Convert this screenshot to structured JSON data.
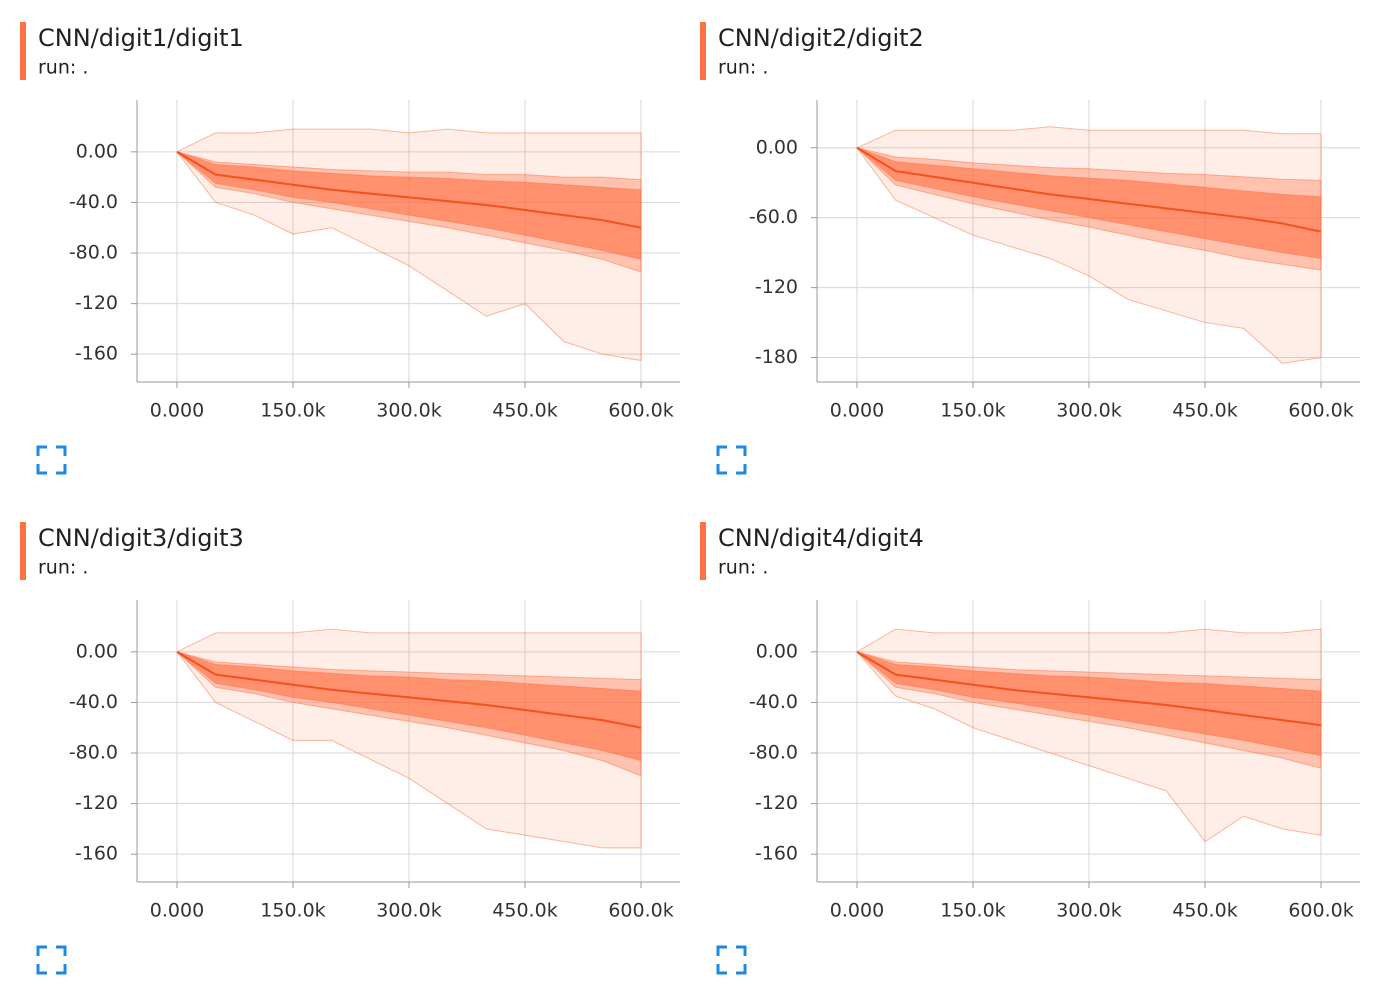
{
  "chart_data": [
    {
      "type": "distribution",
      "title": "CNN/digit1/digit1",
      "subtitle": "run: .",
      "color": "#ff7043",
      "x": [
        0,
        50000,
        100000,
        150000,
        200000,
        250000,
        300000,
        350000,
        400000,
        450000,
        500000,
        550000,
        600000
      ],
      "series": [
        {
          "color": "#ff7043",
          "values": [
            0,
            15,
            15,
            18,
            18,
            18,
            15,
            18,
            15,
            15,
            15,
            15,
            15
          ]
        },
        {
          "color": "#ff7043",
          "values": [
            0,
            -8,
            -10,
            -12,
            -14,
            -15,
            -16,
            -16,
            -18,
            -18,
            -20,
            -20,
            -22
          ]
        },
        {
          "color": "#ff7043",
          "values": [
            0,
            -10,
            -12,
            -15,
            -17,
            -19,
            -20,
            -21,
            -23,
            -24,
            -26,
            -28,
            -30
          ]
        },
        {
          "color": "#f4511e",
          "values": [
            0,
            -18,
            -22,
            -26,
            -30,
            -33,
            -36,
            -39,
            -42,
            -46,
            -50,
            -54,
            -60
          ]
        },
        {
          "color": "#ff7043",
          "values": [
            0,
            -25,
            -30,
            -36,
            -40,
            -45,
            -50,
            -55,
            -60,
            -66,
            -72,
            -78,
            -85
          ]
        },
        {
          "color": "#ff7043",
          "values": [
            0,
            -28,
            -33,
            -40,
            -45,
            -50,
            -55,
            -60,
            -66,
            -72,
            -78,
            -85,
            -95
          ]
        },
        {
          "color": "#ff7043",
          "values": [
            0,
            -40,
            -50,
            -65,
            -60,
            -75,
            -90,
            -110,
            -130,
            -120,
            -150,
            -160,
            -165
          ]
        }
      ],
      "xlim": [
        -51700,
        650400
      ],
      "ylim": [
        -182,
        41
      ],
      "xticks": [
        {
          "value": 0,
          "label": "0.000"
        },
        {
          "value": 150000,
          "label": "150.0k"
        },
        {
          "value": 300000,
          "label": "300.0k"
        },
        {
          "value": 450000,
          "label": "450.0k"
        },
        {
          "value": 600000,
          "label": "600.0k"
        }
      ],
      "yticks": [
        {
          "value": 0,
          "label": "0.00"
        },
        {
          "value": -40,
          "label": "-40.0"
        },
        {
          "value": -80,
          "label": "-80.0"
        },
        -120,
        -160
      ],
      "grid": true
    },
    {
      "type": "distribution",
      "title": "CNN/digit2/digit2",
      "subtitle": "run: .",
      "color": "#ff7043",
      "x": [
        0,
        50000,
        100000,
        150000,
        200000,
        250000,
        300000,
        350000,
        400000,
        450000,
        500000,
        550000,
        600000
      ],
      "series": [
        {
          "color": "#ff7043",
          "values": [
            0,
            15,
            15,
            15,
            15,
            18,
            15,
            15,
            15,
            15,
            15,
            12,
            12
          ]
        },
        {
          "color": "#ff7043",
          "values": [
            0,
            -8,
            -10,
            -13,
            -15,
            -17,
            -18,
            -20,
            -22,
            -23,
            -25,
            -27,
            -28
          ]
        },
        {
          "color": "#ff7043",
          "values": [
            0,
            -12,
            -15,
            -18,
            -21,
            -24,
            -26,
            -28,
            -31,
            -34,
            -37,
            -40,
            -42
          ]
        },
        {
          "color": "#f4511e",
          "values": [
            0,
            -20,
            -25,
            -30,
            -35,
            -40,
            -44,
            -48,
            -52,
            -56,
            -60,
            -65,
            -72
          ]
        },
        {
          "color": "#ff7043",
          "values": [
            0,
            -28,
            -35,
            -42,
            -48,
            -54,
            -60,
            -66,
            -72,
            -78,
            -84,
            -90,
            -95
          ]
        },
        {
          "color": "#ff7043",
          "values": [
            0,
            -32,
            -40,
            -48,
            -55,
            -62,
            -68,
            -75,
            -82,
            -88,
            -95,
            -100,
            -105
          ]
        },
        {
          "color": "#ff7043",
          "values": [
            0,
            -45,
            -60,
            -75,
            -85,
            -95,
            -110,
            -130,
            -140,
            -150,
            -155,
            -185,
            -180
          ]
        }
      ],
      "xlim": [
        -51700,
        650400
      ],
      "ylim": [
        -201,
        41
      ],
      "xticks": [
        {
          "value": 0,
          "label": "0.000"
        },
        {
          "value": 150000,
          "label": "150.0k"
        },
        {
          "value": 300000,
          "label": "300.0k"
        },
        {
          "value": 450000,
          "label": "450.0k"
        },
        {
          "value": 600000,
          "label": "600.0k"
        }
      ],
      "yticks": [
        {
          "value": 0,
          "label": "0.00"
        },
        {
          "value": -60,
          "label": "-60.0"
        },
        -120,
        -180
      ],
      "grid": true
    },
    {
      "type": "distribution",
      "title": "CNN/digit3/digit3",
      "subtitle": "run: .",
      "color": "#ff7043",
      "x": [
        0,
        50000,
        100000,
        150000,
        200000,
        250000,
        300000,
        350000,
        400000,
        450000,
        500000,
        550000,
        600000
      ],
      "series": [
        {
          "color": "#ff7043",
          "values": [
            0,
            15,
            15,
            15,
            18,
            15,
            15,
            15,
            15,
            15,
            15,
            15,
            15
          ]
        },
        {
          "color": "#ff7043",
          "values": [
            0,
            -8,
            -10,
            -12,
            -14,
            -15,
            -16,
            -17,
            -18,
            -19,
            -20,
            -21,
            -22
          ]
        },
        {
          "color": "#ff7043",
          "values": [
            0,
            -10,
            -12,
            -15,
            -17,
            -19,
            -20,
            -22,
            -23,
            -25,
            -27,
            -29,
            -31
          ]
        },
        {
          "color": "#f4511e",
          "values": [
            0,
            -18,
            -22,
            -26,
            -30,
            -33,
            -36,
            -39,
            -42,
            -46,
            -50,
            -54,
            -60
          ]
        },
        {
          "color": "#ff7043",
          "values": [
            0,
            -25,
            -30,
            -36,
            -40,
            -45,
            -50,
            -55,
            -60,
            -66,
            -72,
            -78,
            -86
          ]
        },
        {
          "color": "#ff7043",
          "values": [
            0,
            -28,
            -33,
            -40,
            -45,
            -50,
            -55,
            -60,
            -66,
            -72,
            -78,
            -86,
            -98
          ]
        },
        {
          "color": "#ff7043",
          "values": [
            0,
            -40,
            -55,
            -70,
            -70,
            -85,
            -100,
            -120,
            -140,
            -145,
            -150,
            -155,
            -155
          ]
        }
      ],
      "xlim": [
        -51700,
        650400
      ],
      "ylim": [
        -182,
        41
      ],
      "xticks": [
        {
          "value": 0,
          "label": "0.000"
        },
        {
          "value": 150000,
          "label": "150.0k"
        },
        {
          "value": 300000,
          "label": "300.0k"
        },
        {
          "value": 450000,
          "label": "450.0k"
        },
        {
          "value": 600000,
          "label": "600.0k"
        }
      ],
      "yticks": [
        {
          "value": 0,
          "label": "0.00"
        },
        {
          "value": -40,
          "label": "-40.0"
        },
        {
          "value": -80,
          "label": "-80.0"
        },
        -120,
        -160
      ],
      "grid": true
    },
    {
      "type": "distribution",
      "title": "CNN/digit4/digit4",
      "subtitle": "run: .",
      "color": "#ff7043",
      "x": [
        0,
        50000,
        100000,
        150000,
        200000,
        250000,
        300000,
        350000,
        400000,
        450000,
        500000,
        550000,
        600000
      ],
      "series": [
        {
          "color": "#ff7043",
          "values": [
            0,
            18,
            15,
            15,
            15,
            15,
            15,
            15,
            15,
            18,
            15,
            15,
            18
          ]
        },
        {
          "color": "#ff7043",
          "values": [
            0,
            -8,
            -10,
            -12,
            -14,
            -15,
            -16,
            -17,
            -18,
            -19,
            -20,
            -21,
            -22
          ]
        },
        {
          "color": "#ff7043",
          "values": [
            0,
            -10,
            -12,
            -15,
            -17,
            -19,
            -20,
            -22,
            -24,
            -25,
            -27,
            -29,
            -31
          ]
        },
        {
          "color": "#f4511e",
          "values": [
            0,
            -18,
            -22,
            -26,
            -30,
            -33,
            -36,
            -39,
            -42,
            -46,
            -50,
            -54,
            -58
          ]
        },
        {
          "color": "#ff7043",
          "values": [
            0,
            -25,
            -30,
            -36,
            -40,
            -45,
            -50,
            -55,
            -60,
            -65,
            -70,
            -76,
            -82
          ]
        },
        {
          "color": "#ff7043",
          "values": [
            0,
            -28,
            -33,
            -40,
            -45,
            -50,
            -55,
            -60,
            -66,
            -72,
            -78,
            -84,
            -92
          ]
        },
        {
          "color": "#ff7043",
          "values": [
            0,
            -35,
            -45,
            -60,
            -70,
            -80,
            -90,
            -100,
            -110,
            -150,
            -130,
            -140,
            -145
          ]
        }
      ],
      "xlim": [
        -51700,
        650400
      ],
      "ylim": [
        -182,
        41
      ],
      "xticks": [
        {
          "value": 0,
          "label": "0.000"
        },
        {
          "value": 150000,
          "label": "150.0k"
        },
        {
          "value": 300000,
          "label": "300.0k"
        },
        {
          "value": 450000,
          "label": "450.0k"
        },
        {
          "value": 600000,
          "label": "600.0k"
        }
      ],
      "yticks": [
        {
          "value": 0,
          "label": "0.00"
        },
        {
          "value": -40,
          "label": "-40.0"
        },
        {
          "value": -80,
          "label": "-80.0"
        },
        -120,
        -160
      ],
      "grid": true
    }
  ]
}
